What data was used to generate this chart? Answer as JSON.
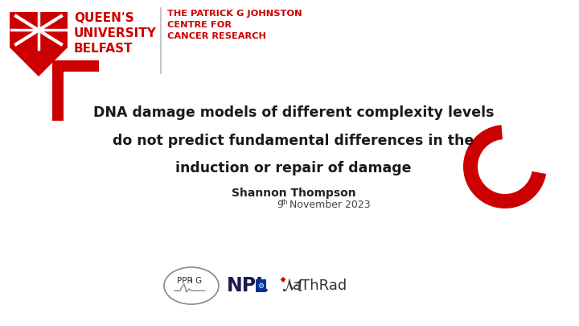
{
  "bg_color": "#ffffff",
  "title_lines": [
    "DNA damage models of different complexity levels",
    "do not predict fundamental differences in the",
    "induction or repair of damage"
  ],
  "author": "Shannon Thompson",
  "date_main": "9",
  "date_sup": "th",
  "date_rest": " November 2023",
  "header_red": "#cc0000",
  "bracket_color": "#cc0000",
  "curl_color": "#cc0000",
  "title_color": "#1a1a1a",
  "author_color": "#222222",
  "date_color": "#444444",
  "divider_color": "#bbbbbb",
  "logo_gray": "#888888",
  "logo_npl_dark": "#1a1a4e",
  "logo_npl_blue": "#003399"
}
